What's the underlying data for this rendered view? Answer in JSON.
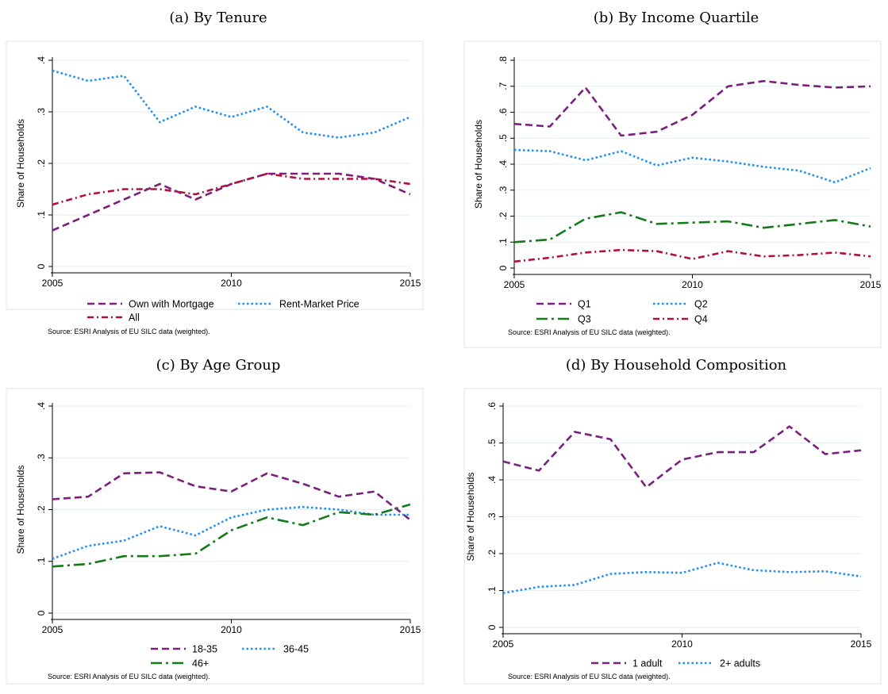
{
  "colors": {
    "purple": "#7b1f7d",
    "blue": "#1e8ff0",
    "green": "#157a1a",
    "crimson": "#b0103e",
    "grid": "#e6eef2",
    "frame": "#dfe6ea"
  },
  "source_note": "Source:  ESRI Analysis of EU SILC data (weighted).",
  "panels": [
    {
      "title": "(a) By Tenure"
    },
    {
      "title": "(b) By Income Quartile"
    },
    {
      "title": "(c) By Age Group"
    },
    {
      "title": "(d) By Household Composition"
    }
  ],
  "chart_data": [
    {
      "type": "line",
      "title": "(a) By Tenure",
      "ylabel": "Share of Households",
      "xlim": [
        2005,
        2015
      ],
      "ylim": [
        0,
        0.4
      ],
      "xticks": [
        "2005",
        "2010",
        "2015"
      ],
      "yticks": [
        0,
        0.1,
        0.2,
        0.3,
        0.4
      ],
      "ytick_labels": [
        "0",
        ".1",
        ".2",
        ".3",
        ".4"
      ],
      "grid": true,
      "legend_position": "bottom",
      "x": [
        2005,
        2006,
        2007,
        2008,
        2009,
        2010,
        2011,
        2012,
        2013,
        2014,
        2015
      ],
      "series": [
        {
          "name": "Own with Mortgage",
          "color": "purple",
          "style": "dash",
          "values": [
            0.07,
            0.1,
            0.13,
            0.16,
            0.13,
            0.16,
            0.18,
            0.18,
            0.18,
            0.17,
            0.14
          ]
        },
        {
          "name": "Rent-Market Price",
          "color": "blue",
          "style": "dot",
          "values": [
            0.38,
            0.36,
            0.37,
            0.28,
            0.31,
            0.29,
            0.31,
            0.26,
            0.25,
            0.26,
            0.29
          ]
        },
        {
          "name": "All",
          "color": "crimson",
          "style": "dashdot",
          "values": [
            0.12,
            0.14,
            0.15,
            0.15,
            0.14,
            0.16,
            0.18,
            0.17,
            0.17,
            0.17,
            0.16
          ]
        }
      ]
    },
    {
      "type": "line",
      "title": "(b) By Income Quartile",
      "ylabel": "Share of Households",
      "xlim": [
        2005,
        2015
      ],
      "ylim": [
        0,
        0.8
      ],
      "xticks": [
        "2005",
        "2010",
        "2015"
      ],
      "yticks": [
        0,
        0.1,
        0.2,
        0.3,
        0.4,
        0.5,
        0.6,
        0.7,
        0.8
      ],
      "ytick_labels": [
        "0",
        ".1",
        ".2",
        ".3",
        ".4",
        ".5",
        ".6",
        ".7",
        ".8"
      ],
      "grid": true,
      "legend_position": "bottom",
      "x": [
        2005,
        2006,
        2007,
        2008,
        2009,
        2010,
        2011,
        2012,
        2013,
        2014,
        2015
      ],
      "series": [
        {
          "name": "Q1",
          "color": "purple",
          "style": "dash",
          "values": [
            0.555,
            0.545,
            0.695,
            0.51,
            0.525,
            0.59,
            0.7,
            0.72,
            0.705,
            0.695,
            0.7
          ]
        },
        {
          "name": "Q2",
          "color": "blue",
          "style": "dot",
          "values": [
            0.455,
            0.45,
            0.415,
            0.45,
            0.395,
            0.425,
            0.41,
            0.39,
            0.375,
            0.33,
            0.385
          ]
        },
        {
          "name": "Q3",
          "color": "green",
          "style": "longdashdot",
          "values": [
            0.1,
            0.11,
            0.19,
            0.215,
            0.17,
            0.175,
            0.18,
            0.155,
            0.17,
            0.185,
            0.16
          ]
        },
        {
          "name": "Q4",
          "color": "crimson",
          "style": "dashdot",
          "values": [
            0.025,
            0.04,
            0.06,
            0.07,
            0.065,
            0.035,
            0.065,
            0.045,
            0.05,
            0.06,
            0.045
          ]
        }
      ]
    },
    {
      "type": "line",
      "title": "(c) By Age Group",
      "ylabel": "Share of Households",
      "xlim": [
        2005,
        2015
      ],
      "ylim": [
        0,
        0.4
      ],
      "xticks": [
        "2005",
        "2010",
        "2015"
      ],
      "yticks": [
        0,
        0.1,
        0.2,
        0.3,
        0.4
      ],
      "ytick_labels": [
        "0",
        ".1",
        ".2",
        ".3",
        ".4"
      ],
      "grid": true,
      "legend_position": "bottom",
      "x": [
        2005,
        2006,
        2007,
        2008,
        2009,
        2010,
        2011,
        2012,
        2013,
        2014,
        2015
      ],
      "series": [
        {
          "name": "18-35",
          "color": "purple",
          "style": "dash",
          "values": [
            0.22,
            0.225,
            0.27,
            0.272,
            0.245,
            0.235,
            0.27,
            0.25,
            0.225,
            0.235,
            0.18
          ]
        },
        {
          "name": "36-45",
          "color": "blue",
          "style": "dot",
          "values": [
            0.105,
            0.13,
            0.14,
            0.168,
            0.15,
            0.185,
            0.2,
            0.205,
            0.2,
            0.19,
            0.19
          ]
        },
        {
          "name": "46+",
          "color": "green",
          "style": "longdashdot",
          "values": [
            0.09,
            0.095,
            0.11,
            0.11,
            0.115,
            0.16,
            0.185,
            0.17,
            0.195,
            0.19,
            0.21
          ]
        }
      ]
    },
    {
      "type": "line",
      "title": "(d) By Household Composition",
      "ylabel": "Share of Households",
      "xlim": [
        2005,
        2015
      ],
      "ylim": [
        0,
        0.6
      ],
      "xticks": [
        "2005",
        "2010",
        "2015"
      ],
      "yticks": [
        0,
        0.1,
        0.2,
        0.3,
        0.4,
        0.5,
        0.6
      ],
      "ytick_labels": [
        "0",
        ".1",
        ".2",
        ".3",
        ".4",
        ".5",
        ".6"
      ],
      "grid": true,
      "legend_position": "bottom",
      "x": [
        2005,
        2006,
        2007,
        2008,
        2009,
        2010,
        2011,
        2012,
        2013,
        2014,
        2015
      ],
      "series": [
        {
          "name": "1 adult",
          "color": "purple",
          "style": "dash",
          "values": [
            0.45,
            0.425,
            0.53,
            0.51,
            0.38,
            0.455,
            0.475,
            0.475,
            0.545,
            0.47,
            0.48
          ]
        },
        {
          "name": "2+ adults",
          "color": "blue",
          "style": "dot",
          "values": [
            0.093,
            0.11,
            0.115,
            0.145,
            0.15,
            0.148,
            0.175,
            0.155,
            0.15,
            0.152,
            0.138
          ]
        }
      ]
    }
  ]
}
